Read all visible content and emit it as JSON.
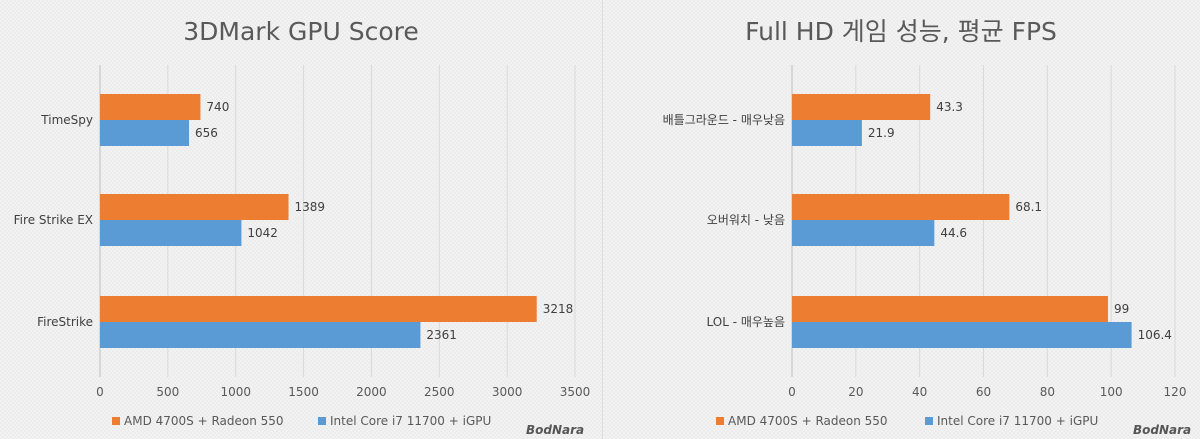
{
  "colors": {
    "series_a": "#ED7D31",
    "series_b": "#5B9BD5",
    "grid": "#d9d9d9",
    "axis": "#bfbfbf"
  },
  "watermark": "BodNara",
  "chart_data": [
    {
      "type": "bar",
      "orientation": "horizontal",
      "title": "3DMark GPU Score",
      "categories": [
        "TimeSpy",
        "Fire Strike EX",
        "FireStrike"
      ],
      "series": [
        {
          "name": "AMD 4700S + Radeon 550",
          "values": [
            740,
            1389,
            3218
          ]
        },
        {
          "name": "Intel Core i7 11700 + iGPU",
          "values": [
            656,
            1042,
            2361
          ]
        }
      ],
      "xlim": [
        0,
        3500
      ],
      "ticks": [
        0,
        500,
        1000,
        1500,
        2000,
        2500,
        3000,
        3500
      ],
      "grid": true,
      "legend": "bottom"
    },
    {
      "type": "bar",
      "orientation": "horizontal",
      "title": "Full HD 게임 성능, 평균 FPS",
      "categories": [
        "배틀그라운드 - 매우낮음",
        "오버워치 - 낮음",
        "LOL - 매우높음"
      ],
      "series": [
        {
          "name": "AMD 4700S + Radeon 550",
          "values": [
            43.3,
            68.1,
            99
          ]
        },
        {
          "name": "Intel Core i7 11700 + iGPU",
          "values": [
            21.9,
            44.6,
            106.4
          ]
        }
      ],
      "xlim": [
        0,
        120
      ],
      "ticks": [
        0,
        20,
        40,
        60,
        80,
        100,
        120
      ],
      "grid": true,
      "legend": "bottom"
    }
  ]
}
